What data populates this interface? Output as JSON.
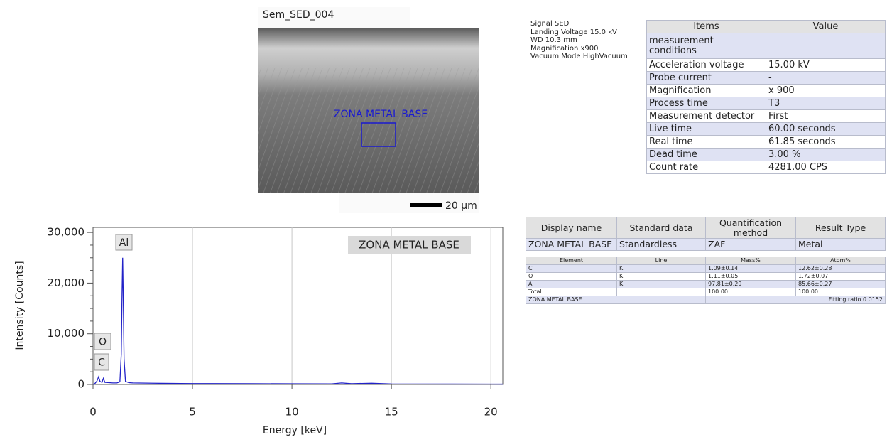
{
  "sem": {
    "title": "Sem_SED_004",
    "roi_label": "ZONA METAL BASE",
    "scale_bar": "20 µm"
  },
  "metadata": [
    "Signal SED",
    "Landing Voltage 15.0 kV",
    "WD 10.3 mm",
    "Magnification x900",
    "Vacuum Mode HighVacuum"
  ],
  "conditions": {
    "header": [
      "Items",
      "Value"
    ],
    "rows": [
      [
        "measurement conditions",
        null
      ],
      [
        "Acceleration voltage",
        "15.00 kV"
      ],
      [
        "Probe current",
        "-"
      ],
      [
        "Magnification",
        "x 900"
      ],
      [
        "Process time",
        "T3"
      ],
      [
        "Measurement detector",
        "First"
      ],
      [
        "Live time",
        "60.00 seconds"
      ],
      [
        "Real time",
        "61.85 seconds"
      ],
      [
        "Dead time",
        "3.00 %"
      ],
      [
        "Count rate",
        "4281.00 CPS"
      ]
    ]
  },
  "summary": {
    "header": [
      "Display name",
      "Standard data",
      "Quantification method",
      "Result Type"
    ],
    "rows": [
      [
        "ZONA METAL BASE",
        "Standardless",
        "ZAF",
        "Metal"
      ]
    ]
  },
  "results": {
    "header": [
      "Element",
      "Line",
      "Mass%",
      "Atom%"
    ],
    "rows": [
      [
        "C",
        "K",
        "1.09±0.14",
        "12.62±0.28"
      ],
      [
        "O",
        "K",
        "1.11±0.05",
        "1.72±0.07"
      ],
      [
        "Al",
        "K",
        "97.81±0.29",
        "85.66±0.27"
      ],
      [
        "Total",
        null,
        "100.00",
        "100.00"
      ]
    ],
    "footer": [
      "ZONA METAL BASE",
      "Fitting ratio 0.0152"
    ]
  },
  "chart_data": {
    "type": "line",
    "xlabel": "Energy [keV]",
    "ylabel": "Intensity [Counts]",
    "annotation": "ZONA METAL BASE",
    "peak_labels": [
      "Al",
      "O",
      "C"
    ],
    "x": [
      0,
      0.1,
      0.2,
      0.28,
      0.35,
      0.45,
      0.52,
      0.6,
      0.8,
      1.0,
      1.2,
      1.35,
      1.42,
      1.46,
      1.49,
      1.52,
      1.56,
      1.63,
      1.8,
      2.0,
      3,
      4,
      5,
      6,
      8,
      10,
      12,
      12.5,
      13,
      14,
      15,
      16,
      18,
      20,
      20.6
    ],
    "series": [
      {
        "name": "ZONA METAL BASE",
        "color": "#2222c8",
        "values": [
          0,
          200,
          700,
          1500,
          600,
          400,
          1200,
          400,
          350,
          300,
          300,
          500,
          6000,
          18000,
          25000,
          17000,
          5000,
          600,
          350,
          300,
          250,
          200,
          180,
          170,
          150,
          140,
          120,
          300,
          150,
          250,
          100,
          90,
          80,
          70,
          60
        ]
      }
    ],
    "xlim": [
      0,
      20.6
    ],
    "ylim": [
      0,
      31000
    ],
    "xticks": [
      0,
      5,
      10,
      15,
      20
    ],
    "yticks": [
      0,
      {
        "value": 10000,
        "label": "10,000"
      },
      {
        "value": 20000,
        "label": "20,000"
      },
      {
        "value": 30000,
        "label": "30,000"
      }
    ],
    "grid": true
  }
}
